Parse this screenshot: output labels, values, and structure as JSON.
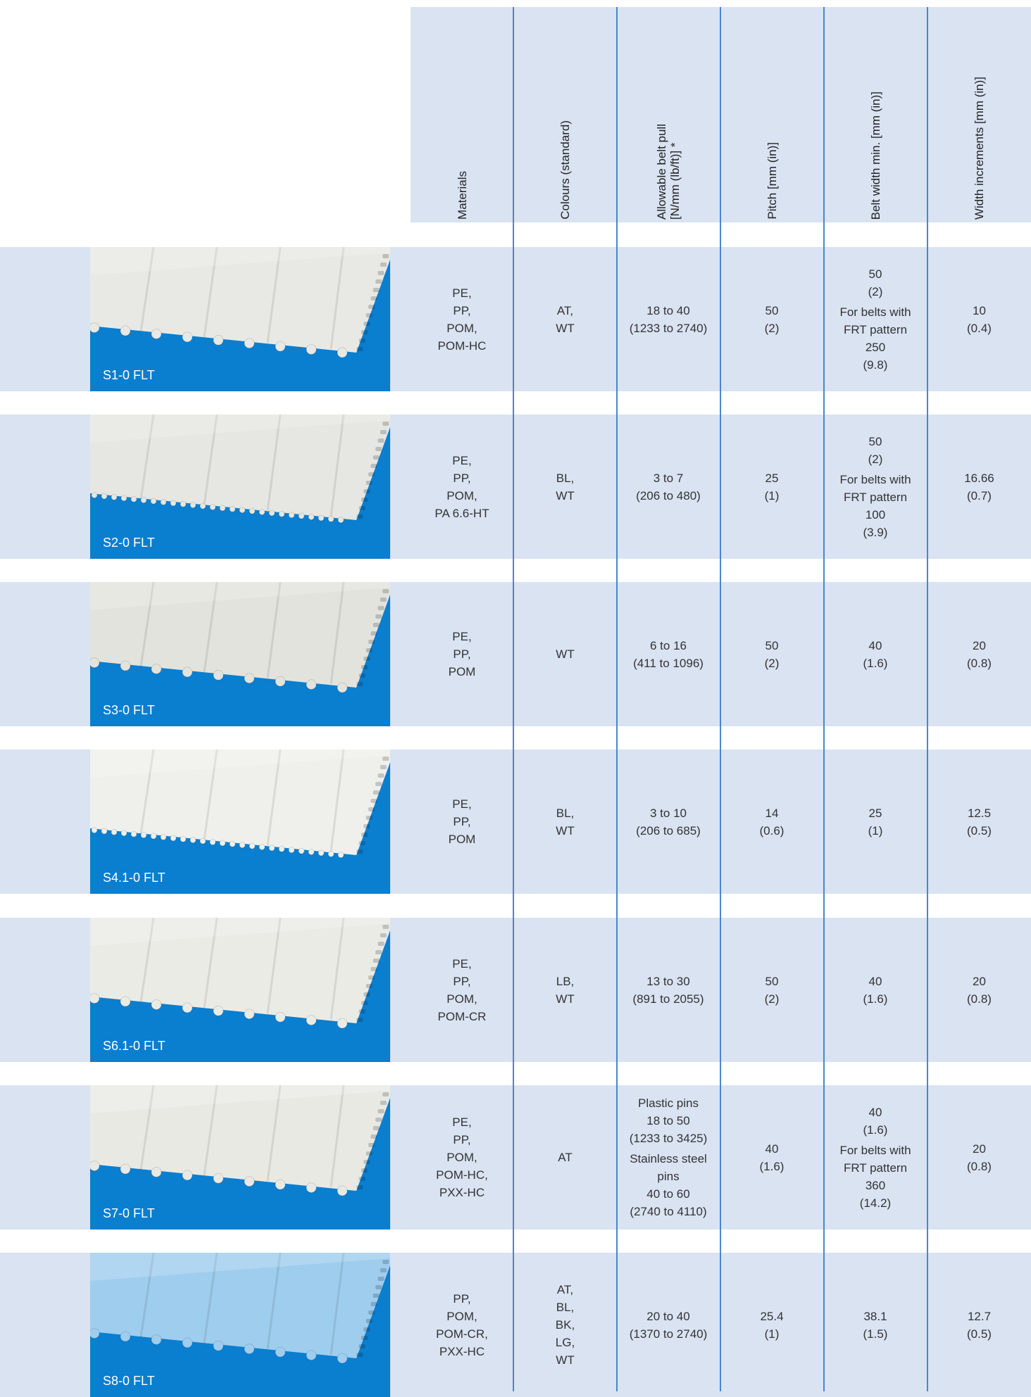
{
  "headers": [
    {
      "text": "Materials"
    },
    {
      "text": "Colours (standard)"
    },
    {
      "text": "Allowable belt pull\n[N/mm (lb/ft)] *"
    },
    {
      "text": "Pitch [mm (in)]"
    },
    {
      "text": "Belt width min. [mm (in)]"
    },
    {
      "text": "Width increments [mm (in)]"
    }
  ],
  "rows": [
    {
      "label": "S1-0 FLT",
      "photo_color": "#e8e9e4",
      "cells": [
        [
          "PE,\nPP,\nPOM,\nPOM-HC"
        ],
        [
          "AT,\nWT"
        ],
        [
          "18 to 40\n(1233 to 2740)"
        ],
        [
          "50\n(2)"
        ],
        [
          "50\n(2)",
          "For belts with\nFRT pattern\n250\n(9.8)"
        ],
        [
          "10\n(0.4)"
        ]
      ]
    },
    {
      "label": "S2-0 FLT",
      "photo_color": "#e6e7e2",
      "cells": [
        [
          "PE,\nPP,\nPOM,\nPA 6.6-HT"
        ],
        [
          "BL,\nWT"
        ],
        [
          "3 to 7\n(206 to 480)"
        ],
        [
          "25\n(1)"
        ],
        [
          "50\n(2)",
          "For belts with\nFRT pattern\n100\n(3.9)"
        ],
        [
          "16.66\n(0.7)"
        ]
      ]
    },
    {
      "label": "S3-0 FLT",
      "photo_color": "#e3e3dd",
      "cells": [
        [
          "PE,\nPP,\nPOM"
        ],
        [
          "WT"
        ],
        [
          "6 to 16\n(411 to 1096)"
        ],
        [
          "50\n(2)"
        ],
        [
          "40\n(1.6)"
        ],
        [
          "20\n(0.8)"
        ]
      ]
    },
    {
      "label": "S4.1-0 FLT",
      "photo_color": "#eff0ec",
      "cells": [
        [
          "PE,\nPP,\nPOM"
        ],
        [
          "BL,\nWT"
        ],
        [
          "3 to 10\n(206 to 685)"
        ],
        [
          "14\n(0.6)"
        ],
        [
          "25\n(1)"
        ],
        [
          "12.5\n(0.5)"
        ]
      ]
    },
    {
      "label": "S6.1-0 FLT",
      "photo_color": "#ebebe6",
      "cells": [
        [
          "PE,\nPP,\nPOM,\nPOM-CR"
        ],
        [
          "LB,\nWT"
        ],
        [
          "13 to 30\n(891 to 2055)"
        ],
        [
          "50\n(2)"
        ],
        [
          "40\n(1.6)"
        ],
        [
          "20\n(0.8)"
        ]
      ]
    },
    {
      "label": "S7-0 FLT",
      "photo_color": "#e9e9e4",
      "cells": [
        [
          "PE,\nPP,\nPOM,\nPOM-HC,\nPXX-HC"
        ],
        [
          "AT"
        ],
        [
          "Plastic pins\n18 to 50\n(1233 to 3425)",
          "Stainless steel\npins\n40 to 60\n(2740 to 4110)"
        ],
        [
          "40\n(1.6)"
        ],
        [
          "40\n(1.6)",
          "For belts with\nFRT pattern\n360\n(14.2)"
        ],
        [
          "20\n(0.8)"
        ]
      ]
    },
    {
      "label": "S8-0 FLT",
      "photo_color": "#9fcdee",
      "cells": [
        [
          "PP,\nPOM,\nPOM-CR,\nPXX-HC"
        ],
        [
          "AT,\nBL,\nBK,\nLG,\nWT"
        ],
        [
          "20 to 40\n(1370 to 2740)"
        ],
        [
          "25.4\n(1)"
        ],
        [
          "38.1\n(1.5)"
        ],
        [
          "12.7\n(0.5)"
        ]
      ]
    }
  ]
}
